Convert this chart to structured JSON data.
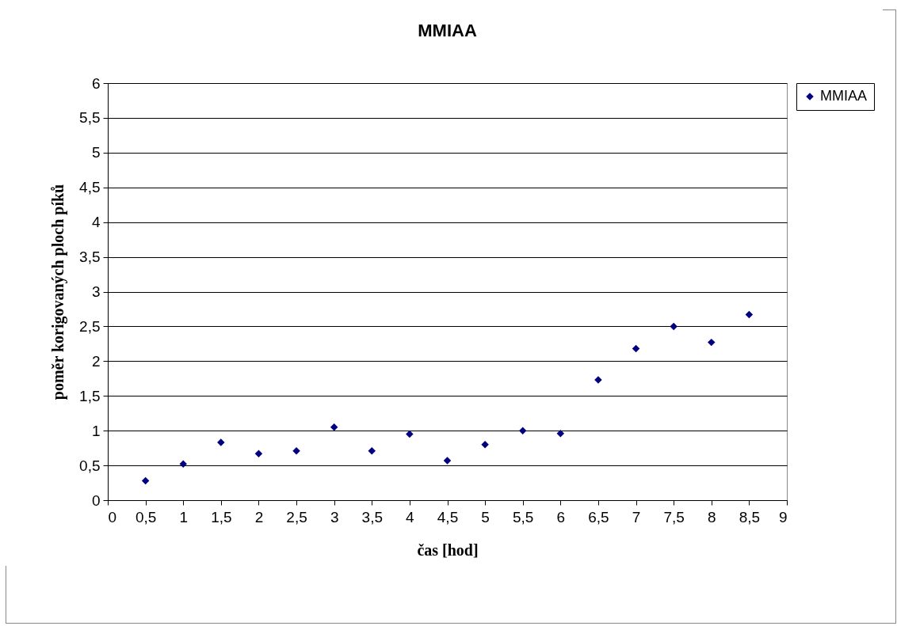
{
  "chart_data": {
    "type": "scatter",
    "title": "MMIAA",
    "xlabel": "čas [hod]",
    "ylabel": "poměr korigovaných ploch píků",
    "x": [
      0.5,
      1,
      1.5,
      2,
      2.5,
      3,
      3.5,
      4,
      4.5,
      5,
      5.5,
      6,
      6.5,
      7,
      7.5,
      8,
      8.5
    ],
    "series": [
      {
        "name": "MMIAA",
        "color": "#000080",
        "values": [
          0.28,
          0.52,
          0.83,
          0.67,
          0.71,
          1.05,
          0.71,
          0.95,
          0.57,
          0.8,
          1.0,
          0.96,
          1.73,
          2.18,
          2.5,
          2.27,
          2.67
        ]
      }
    ],
    "xlim": [
      0,
      9
    ],
    "xticks": [
      0,
      {
        "value": 0.5,
        "label": "0,5"
      },
      1,
      {
        "value": 1.5,
        "label": "1,5"
      },
      2,
      {
        "value": 2.5,
        "label": "2,5"
      },
      3,
      {
        "value": 3.5,
        "label": "3,5"
      },
      4,
      {
        "value": 4.5,
        "label": "4,5"
      },
      5,
      {
        "value": 5.5,
        "label": "5,5"
      },
      6,
      {
        "value": 6.5,
        "label": "6,5"
      },
      7,
      {
        "value": 7.5,
        "label": "7,5"
      },
      8,
      {
        "value": 8.5,
        "label": "8,5"
      },
      9
    ],
    "ylim": [
      0,
      6
    ],
    "yticks": [
      0,
      {
        "value": 0.5,
        "label": "0,5"
      },
      1,
      {
        "value": 1.5,
        "label": "1,5"
      },
      2,
      {
        "value": 2.5,
        "label": "2,5"
      },
      3,
      {
        "value": 3.5,
        "label": "3,5"
      },
      4,
      {
        "value": 4.5,
        "label": "4,5"
      },
      5,
      {
        "value": 5.5,
        "label": "5,5"
      },
      6
    ],
    "grid": "y",
    "legend": "right",
    "marker": "diamond"
  }
}
